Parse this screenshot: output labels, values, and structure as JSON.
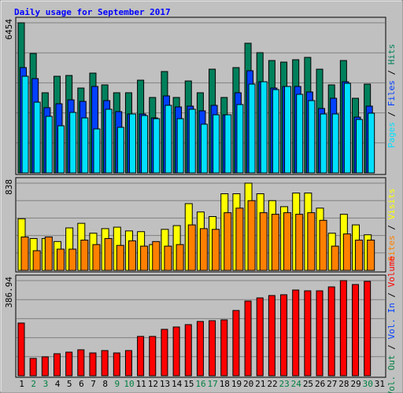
{
  "chart_data": [
    {
      "type": "bar",
      "title": "Daily usage for September 2017",
      "legend_separator": " / ",
      "ylim": [
        0,
        6454
      ],
      "yticks": [
        6454
      ],
      "series": [
        {
          "name": "Hits",
          "color": "#00805c",
          "values": [
            6454,
            5136,
            3447,
            4156,
            4190,
            3649,
            4291,
            3785,
            3447,
            3447,
            3987,
            3244,
            4359,
            3244,
            3953,
            3447,
            4460,
            3244,
            4528,
            5575,
            5170,
            4832,
            4764,
            4866,
            4967,
            4460,
            3785,
            4832,
            3210,
            3818,
            null
          ]
        },
        {
          "name": "Files",
          "color": "#0040ff",
          "values": [
            4528,
            4055,
            2805,
            2974,
            3142,
            3075,
            3717,
            3109,
            2636,
            2534,
            2534,
            2365,
            3311,
            2838,
            2872,
            2669,
            2906,
            2500,
            3447,
            4393,
            3920,
            3649,
            3717,
            3717,
            3480,
            2771,
            3210,
            3920,
            2399,
            2872,
            null
          ]
        },
        {
          "name": "Pages",
          "color": "#00e0ff",
          "values": [
            4156,
            3041,
            2433,
            2027,
            2602,
            2365,
            1892,
            2737,
            1960,
            2534,
            2467,
            2332,
            2906,
            2332,
            2737,
            2095,
            2500,
            2500,
            2940,
            3818,
            3920,
            3582,
            3717,
            3379,
            3109,
            2534,
            2534,
            3852,
            2298,
            2568,
            null
          ]
        }
      ]
    },
    {
      "type": "bar",
      "legend_separator": " / ",
      "ylim": [
        0,
        838
      ],
      "yticks": [
        838
      ],
      "series": [
        {
          "name": "Visits",
          "color": "#ffff00",
          "values": [
            496,
            306,
            306,
            277,
            408,
            452,
            357,
            401,
            415,
            379,
            372,
            248,
            394,
            430,
            641,
            561,
            517,
            736,
            736,
            838,
            736,
            670,
            612,
            743,
            743,
            598,
            357,
            539,
            437,
            342,
            null
          ]
        },
        {
          "name": "Sites",
          "color": "#ff8000",
          "values": [
            321,
            189,
            321,
            204,
            204,
            291,
            248,
            306,
            240,
            284,
            233,
            277,
            233,
            248,
            437,
            401,
            394,
            554,
            598,
            670,
            554,
            539,
            554,
            539,
            554,
            481,
            233,
            350,
            291,
            291,
            null
          ]
        }
      ]
    },
    {
      "type": "bar",
      "legend_separator": " / ",
      "ylim": [
        0,
        386.94
      ],
      "yticks": [
        386.94
      ],
      "categories": [
        "1",
        "2",
        "3",
        "4",
        "5",
        "6",
        "7",
        "8",
        "9",
        "10",
        "11",
        "12",
        "13",
        "14",
        "15",
        "16",
        "17",
        "18",
        "19",
        "20",
        "21",
        "22",
        "23",
        "24",
        "25",
        "26",
        "27",
        "28",
        "29",
        "30",
        "31"
      ],
      "category_colors": [
        "#000000",
        "#008040",
        "#008040",
        "#000000",
        "#000000",
        "#000000",
        "#000000",
        "#000000",
        "#008040",
        "#008040",
        "#000000",
        "#000000",
        "#000000",
        "#000000",
        "#000000",
        "#008040",
        "#008040",
        "#000000",
        "#000000",
        "#000000",
        "#000000",
        "#000000",
        "#008040",
        "#008040",
        "#000000",
        "#000000",
        "#000000",
        "#000000",
        "#000000",
        "#008040",
        "#000000"
      ],
      "series": [
        {
          "name": "Volume",
          "color": "#ff0000",
          "values": [
            214.3,
            70.4,
            76.8,
            89.5,
            95.9,
            105.5,
            92.7,
            102.3,
            92.7,
            102.3,
            159.9,
            159.9,
            188.7,
            198.3,
            207.9,
            220.7,
            223.9,
            227.1,
            265.4,
            303.8,
            316.6,
            326.2,
            329.4,
            348.6,
            345.4,
            345.4,
            361.4,
            386.94,
            371.0,
            383.8,
            null
          ]
        },
        {
          "name": "Vol. In",
          "color": "#0040ff",
          "values": [
            null,
            null,
            null,
            null,
            null,
            null,
            null,
            null,
            null,
            null,
            null,
            null,
            null,
            null,
            null,
            null,
            null,
            null,
            null,
            null,
            null,
            null,
            null,
            null,
            null,
            null,
            null,
            null,
            null,
            null,
            null
          ]
        },
        {
          "name": "Vol. Out",
          "color": "#008040",
          "values": [
            null,
            null,
            null,
            null,
            null,
            null,
            null,
            null,
            null,
            null,
            null,
            null,
            null,
            null,
            null,
            null,
            null,
            null,
            null,
            null,
            null,
            null,
            null,
            null,
            null,
            null,
            null,
            null,
            null,
            null,
            null
          ]
        }
      ]
    }
  ]
}
